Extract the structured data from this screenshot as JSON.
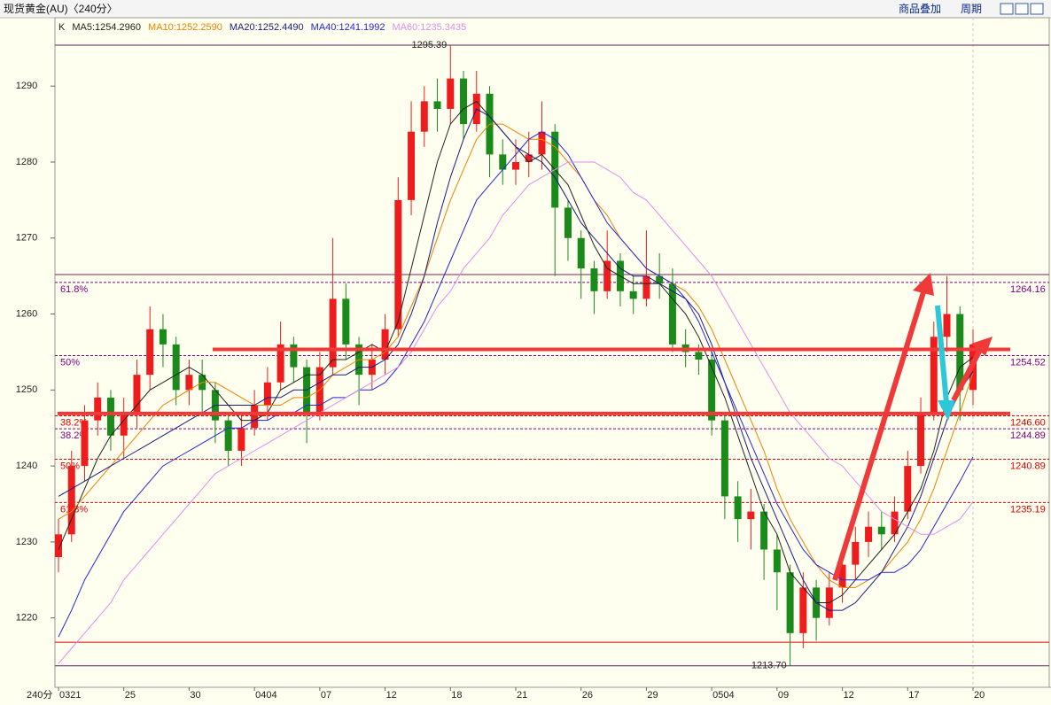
{
  "header": {
    "title": "现货黄金(AU)〈240分〉",
    "buttons": [
      "商品叠加",
      "周期"
    ]
  },
  "chart_data": {
    "type": "candlestick",
    "legend_prefix": "K",
    "legend_separator": ":",
    "x_unit_label": "240分",
    "categories": [
      "0321",
      null,
      null,
      null,
      null,
      "25",
      null,
      null,
      null,
      null,
      "30",
      null,
      null,
      null,
      null,
      "0404",
      null,
      null,
      null,
      null,
      "07",
      null,
      null,
      null,
      null,
      "12",
      null,
      null,
      null,
      null,
      "18",
      null,
      null,
      null,
      null,
      "21",
      null,
      null,
      null,
      null,
      "26",
      null,
      null,
      null,
      null,
      "29",
      null,
      null,
      null,
      null,
      "0504",
      null,
      null,
      null,
      null,
      "09",
      null,
      null,
      null,
      null,
      "12",
      null,
      null,
      null,
      null,
      "17",
      null,
      null,
      null,
      null,
      "20"
    ],
    "candles": {
      "open": [
        1228,
        1231,
        1240,
        1246,
        1249,
        1244,
        1247,
        1252,
        1258,
        1256,
        1250,
        1252,
        1250,
        1246,
        1242,
        1245,
        1248,
        1251,
        1256,
        1253,
        1247,
        1253,
        1262,
        1256,
        1252,
        1254,
        1258,
        1275,
        1284,
        1288,
        1287,
        1291,
        1285,
        1289,
        1281,
        1279,
        1280,
        1281,
        1284,
        1274,
        1270,
        1266,
        1263,
        1267,
        1263,
        1262,
        1265,
        1264,
        1256,
        1255,
        1254,
        1246,
        1236,
        1233,
        1234,
        1229,
        1226,
        1218,
        1224,
        1220,
        1224,
        1227,
        1230,
        1232,
        1231,
        1234,
        1240,
        1247,
        1257,
        1260,
        1250
      ],
      "high": [
        1233,
        1242,
        1248,
        1251,
        1250,
        1249,
        1254,
        1261,
        1260,
        1257,
        1254,
        1254,
        1251,
        1247,
        1247,
        1250,
        1253,
        1259,
        1257,
        1254,
        1255,
        1270,
        1264,
        1257,
        1256,
        1260,
        1278,
        1288,
        1290,
        1291,
        1295.39,
        1292,
        1292,
        1290,
        1283,
        1283,
        1284,
        1288,
        1285,
        1275,
        1271,
        1267,
        1271,
        1268,
        1265,
        1271,
        1268,
        1266,
        1258,
        1256,
        1255,
        1247,
        1238,
        1237,
        1235,
        1231,
        1227,
        1226,
        1225,
        1226,
        1229,
        1232,
        1234,
        1234,
        1236,
        1242,
        1249,
        1259,
        1265,
        1261,
        1258
      ],
      "low": [
        1226,
        1230,
        1238,
        1244,
        1242,
        1241,
        1245,
        1250,
        1253,
        1248,
        1248,
        1247,
        1243,
        1240,
        1240,
        1244,
        1246,
        1250,
        1251,
        1243,
        1246,
        1252,
        1254,
        1248,
        1250,
        1252,
        1257,
        1273,
        1282,
        1284,
        1285,
        1283,
        1284,
        1278,
        1277,
        1277,
        1278,
        1279,
        1265,
        1267,
        1262,
        1260,
        1262,
        1261,
        1260,
        1261,
        1262,
        1255,
        1253,
        1252,
        1244,
        1233,
        1230,
        1229,
        1225,
        1221,
        1213.7,
        1216,
        1217,
        1219,
        1222,
        1225,
        1228,
        1229,
        1230,
        1233,
        1239,
        1246,
        1255,
        1246,
        1248
      ],
      "close": [
        1231,
        1240,
        1246,
        1249,
        1244,
        1247,
        1252,
        1258,
        1256,
        1250,
        1252,
        1250,
        1246,
        1242,
        1245,
        1248,
        1251,
        1256,
        1253,
        1247,
        1253,
        1262,
        1256,
        1252,
        1254,
        1258,
        1275,
        1284,
        1288,
        1287,
        1291,
        1285,
        1289,
        1281,
        1279,
        1280,
        1281,
        1284,
        1274,
        1270,
        1266,
        1263,
        1267,
        1263,
        1262,
        1265,
        1264,
        1256,
        1255,
        1254,
        1246,
        1236,
        1233,
        1234,
        1229,
        1226,
        1218,
        1224,
        1220,
        1224,
        1227,
        1230,
        1232,
        1231,
        1234,
        1240,
        1247,
        1257,
        1260,
        1250,
        1256
      ]
    },
    "up_color": "#ee1c1c",
    "down_color": "#1a8a1a",
    "min_label": "1213.70",
    "series": [
      {
        "name": "MA5",
        "color": "#222222",
        "last_value": 1254.296,
        "last_value_label": "1254.2960",
        "values": [
          1229,
          1233,
          1237,
          1241,
          1244,
          1246,
          1248,
          1250,
          1251,
          1252,
          1253,
          1252,
          1250,
          1248,
          1246,
          1246,
          1247,
          1250,
          1251,
          1252,
          1252,
          1254,
          1254,
          1255,
          1256,
          1255,
          1259,
          1266,
          1273,
          1280,
          1285,
          1287,
          1288,
          1286,
          1284,
          1282,
          1280,
          1281,
          1279,
          1277,
          1273,
          1269,
          1266,
          1265,
          1264,
          1264,
          1264,
          1262,
          1260,
          1257,
          1253,
          1249,
          1244,
          1239,
          1234,
          1231,
          1226,
          1224,
          1222,
          1222,
          1223,
          1225,
          1227,
          1229,
          1231,
          1234,
          1237,
          1242,
          1249,
          1253,
          1254.3
        ]
      },
      {
        "name": "MA10",
        "color": "#f08000",
        "last_value": 1252.259,
        "last_value_label": "1252.2590",
        "values": [
          1233,
          1234,
          1236,
          1238,
          1240,
          1242,
          1244,
          1246,
          1248,
          1249,
          1250,
          1251,
          1251,
          1250,
          1249,
          1248,
          1248,
          1248,
          1249,
          1249,
          1250,
          1252,
          1253,
          1254,
          1254,
          1255,
          1257,
          1261,
          1265,
          1270,
          1275,
          1279,
          1283,
          1285,
          1285,
          1284,
          1283,
          1283,
          1282,
          1280,
          1278,
          1275,
          1273,
          1270,
          1268,
          1266,
          1265,
          1264,
          1263,
          1261,
          1258,
          1254,
          1250,
          1246,
          1242,
          1237,
          1233,
          1230,
          1227,
          1225,
          1224,
          1224,
          1225,
          1226,
          1228,
          1230,
          1233,
          1237,
          1242,
          1247,
          1252.3
        ]
      },
      {
        "name": "MA20",
        "color": "#1a1a80",
        "last_value": 1252.449,
        "last_value_label": "1252.4490",
        "values": [
          1236,
          1237,
          1238,
          1239,
          1240,
          1241,
          1242,
          1243,
          1244,
          1245,
          1246,
          1247,
          1248,
          1248,
          1248,
          1248,
          1249,
          1249,
          1250,
          1250,
          1251,
          1252,
          1252,
          1253,
          1253,
          1254,
          1256,
          1260,
          1265,
          1272,
          1278,
          1283,
          1287,
          1286,
          1284,
          1282,
          1281,
          1280,
          1278,
          1275,
          1272,
          1270,
          1268,
          1266,
          1265,
          1265,
          1264,
          1263,
          1262,
          1260,
          1256,
          1251,
          1246,
          1241,
          1237,
          1233,
          1229,
          1225,
          1222,
          1221,
          1221,
          1222,
          1224,
          1226,
          1229,
          1232,
          1236,
          1241,
          1246,
          1250,
          1252.4
        ]
      },
      {
        "name": "MA40",
        "color": "#2424d8",
        "last_value": 1241.1992,
        "last_value_label": "1241.1992",
        "values": [
          1217.5,
          1221,
          1225,
          1228,
          1231,
          1234,
          1236,
          1238,
          1240,
          1241,
          1242,
          1243,
          1244,
          1245,
          1245,
          1246,
          1246,
          1247,
          1247,
          1248,
          1248,
          1249,
          1249,
          1250,
          1250,
          1251,
          1253,
          1256,
          1259,
          1263,
          1267,
          1271,
          1275,
          1277,
          1279,
          1281,
          1283,
          1284,
          1283,
          1281,
          1278,
          1275,
          1272,
          1270,
          1268,
          1266,
          1265,
          1264,
          1262,
          1259,
          1255,
          1251,
          1247,
          1243,
          1239,
          1235,
          1232,
          1229,
          1227,
          1226,
          1225,
          1225,
          1225,
          1226,
          1226,
          1227,
          1229,
          1232,
          1235,
          1238,
          1241.2
        ]
      },
      {
        "name": "MA60",
        "color": "#e08cf0",
        "last_value": 1235.3435,
        "last_value_label": "1235.3435",
        "values": [
          1214,
          1216,
          1218,
          1220,
          1222,
          1225,
          1227,
          1229,
          1231,
          1233,
          1235,
          1237,
          1239,
          1240,
          1241,
          1242,
          1243,
          1244,
          1245,
          1246,
          1247,
          1248,
          1249,
          1250,
          1251,
          1252,
          1253,
          1255,
          1258,
          1261,
          1263,
          1266,
          1268,
          1270,
          1273,
          1275,
          1277,
          1278,
          1279,
          1280,
          1280,
          1280,
          1279,
          1278,
          1276,
          1275,
          1273,
          1271,
          1269,
          1267,
          1265,
          1262,
          1259,
          1256,
          1253,
          1250,
          1247,
          1245,
          1243,
          1241,
          1240,
          1238,
          1236,
          1234,
          1233,
          1232,
          1231,
          1231,
          1232,
          1233,
          1235.3
        ]
      }
    ],
    "ylim": [
      1210.87,
      1299.0
    ],
    "yticks": [
      1220,
      1230,
      1240,
      1250,
      1260,
      1270,
      1280,
      1290
    ],
    "levels": [
      {
        "value": 1265.2,
        "color": "#80204a"
      },
      {
        "value": 1216.8,
        "color": "#e00000"
      }
    ],
    "drawn_levels": [
      {
        "value": 1255.35,
        "color": "#f03a3a"
      },
      {
        "value": 1246.9,
        "color": "#f03a3a"
      }
    ],
    "fib_levels": [
      {
        "label": "61.8%",
        "price": 1264.16,
        "color": "#800080"
      },
      {
        "label": "50%",
        "price": 1254.52,
        "color": "#800080"
      },
      {
        "label": "38.2%",
        "price": 1244.89,
        "color": "#800080"
      },
      {
        "label": "38.2%",
        "price": {
          "value": 1246.6,
          "label": "1246.60"
        },
        "color": "#e00000"
      },
      {
        "label": "50%",
        "price": 1240.89,
        "color": "#e00000"
      },
      {
        "label": "61.8%",
        "price": 1235.19,
        "color": "#e00000"
      }
    ]
  }
}
